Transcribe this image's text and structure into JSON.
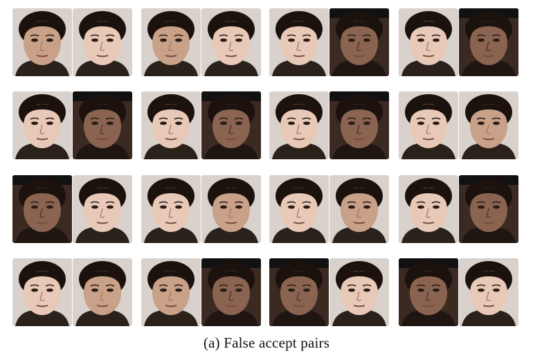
{
  "figure": {
    "caption": "(a) False accept pairs"
  },
  "grid": {
    "rows": 4,
    "columns": 8,
    "pairs_per_row": 4,
    "tiles": [
      [
        "bright-dark",
        "bright",
        "mid",
        "bright",
        "bright",
        "dark",
        "bright",
        "dark"
      ],
      [
        "bright",
        "dark",
        "bright",
        "dark",
        "bright",
        "dark",
        "bright",
        "mid"
      ],
      [
        "dark",
        "bright",
        "bright",
        "mid",
        "bright",
        "mid",
        "bright",
        "dark"
      ],
      [
        "bright",
        "mid",
        "mid",
        "dark",
        "dark",
        "bright",
        "dark",
        "bright"
      ]
    ]
  },
  "colors": {
    "background": "#ffffff",
    "bright_skin": "#e8c9b8",
    "mid_skin": "#c9a088",
    "dark_skin": "#8a6450",
    "hair": "#1b120d",
    "backdrop": "#d9d2cc"
  }
}
